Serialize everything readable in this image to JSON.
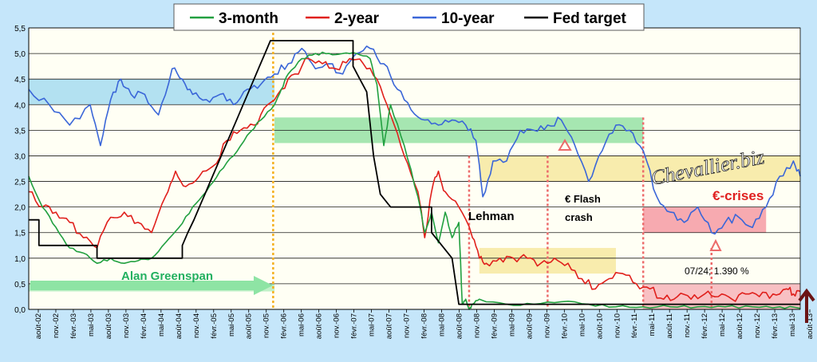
{
  "chart_data": {
    "type": "line",
    "title": "",
    "ylabel": "",
    "xlabel": "",
    "ylim": [
      0,
      5.5
    ],
    "y_ticks": [
      "0,0",
      "0,5",
      "1,0",
      "1,5",
      "2,0",
      "2,5",
      "3,0",
      "3,5",
      "4,0",
      "4,5",
      "5,0",
      "5,5"
    ],
    "x_ticks": [
      "août-02",
      "nov.-02",
      "févr.-03",
      "mai-03",
      "août-03",
      "nov.-03",
      "févr.-04",
      "mai-04",
      "août-04",
      "nov.-04",
      "févr.-05",
      "mai-05",
      "août-05",
      "nov.-05",
      "févr.-06",
      "mai-06",
      "août-06",
      "nov.-06",
      "févr.-07",
      "mai-07",
      "août-07",
      "nov.-07",
      "févr.-08",
      "mai-08",
      "août-08",
      "nov.-08",
      "févr.-09",
      "mai-09",
      "août-09",
      "nov.-09",
      "févr.-10",
      "mai-10",
      "août-10",
      "nov.-10",
      "févr.-11",
      "mai-11",
      "août-11",
      "nov.-11",
      "févr.-12",
      "mai-12",
      "août-12",
      "nov.-12",
      "févr.-13",
      "mai-13",
      "août-13"
    ],
    "legend": [
      {
        "name": "3-month",
        "color": "#22a040"
      },
      {
        "name": "2-year",
        "color": "#e0201c"
      },
      {
        "name": "10-year",
        "color": "#3a66d8"
      },
      {
        "name": "Fed target",
        "color": "#000000"
      }
    ],
    "series": [
      {
        "name": "10-year",
        "color": "#3a66d8",
        "points": [
          [
            0,
            4.3
          ],
          [
            3,
            4.0
          ],
          [
            6,
            3.6
          ],
          [
            9,
            4.0
          ],
          [
            10.5,
            3.2
          ],
          [
            12,
            4.1
          ],
          [
            13.5,
            4.5
          ],
          [
            15,
            4.2
          ],
          [
            17,
            4.2
          ],
          [
            19,
            3.8
          ],
          [
            21,
            4.7
          ],
          [
            22.5,
            4.5
          ],
          [
            24,
            4.2
          ],
          [
            26,
            4.1
          ],
          [
            28,
            4.2
          ],
          [
            30,
            4.0
          ],
          [
            32,
            4.3
          ],
          [
            34,
            4.4
          ],
          [
            36,
            4.6
          ],
          [
            38,
            4.8
          ],
          [
            40,
            5.1
          ],
          [
            42,
            4.7
          ],
          [
            44,
            4.8
          ],
          [
            46,
            4.6
          ],
          [
            48,
            5.0
          ],
          [
            50,
            5.1
          ],
          [
            52,
            4.8
          ],
          [
            54,
            4.3
          ],
          [
            56,
            3.9
          ],
          [
            58,
            3.7
          ],
          [
            60,
            3.6
          ],
          [
            62,
            3.7
          ],
          [
            64,
            3.6
          ],
          [
            65.5,
            3.3
          ],
          [
            66.5,
            2.2
          ],
          [
            68,
            2.9
          ],
          [
            70,
            2.9
          ],
          [
            72,
            3.5
          ],
          [
            74,
            3.5
          ],
          [
            76,
            3.6
          ],
          [
            78,
            3.7
          ],
          [
            80,
            3.2
          ],
          [
            82,
            2.5
          ],
          [
            84,
            3.1
          ],
          [
            86,
            3.6
          ],
          [
            88,
            3.5
          ],
          [
            90,
            3.1
          ],
          [
            92,
            2.2
          ],
          [
            94,
            1.9
          ],
          [
            96,
            1.7
          ],
          [
            98,
            2.0
          ],
          [
            100,
            1.5
          ],
          [
            102,
            1.7
          ],
          [
            104,
            1.8
          ],
          [
            106,
            1.6
          ],
          [
            108,
            2.0
          ],
          [
            110,
            2.6
          ],
          [
            112,
            2.9
          ],
          [
            113,
            2.6
          ]
        ]
      },
      {
        "name": "2-year",
        "color": "#e0201c",
        "points": [
          [
            0,
            2.3
          ],
          [
            2,
            2.0
          ],
          [
            4,
            1.9
          ],
          [
            6,
            1.7
          ],
          [
            8,
            1.4
          ],
          [
            10,
            1.2
          ],
          [
            12,
            1.8
          ],
          [
            14,
            1.9
          ],
          [
            16,
            1.7
          ],
          [
            18,
            1.5
          ],
          [
            20,
            2.2
          ],
          [
            21.5,
            2.7
          ],
          [
            23,
            2.4
          ],
          [
            25,
            2.6
          ],
          [
            27,
            2.8
          ],
          [
            29,
            3.3
          ],
          [
            31,
            3.5
          ],
          [
            33,
            3.6
          ],
          [
            35,
            4.0
          ],
          [
            37,
            4.3
          ],
          [
            39,
            4.6
          ],
          [
            41,
            4.9
          ],
          [
            43,
            4.8
          ],
          [
            45,
            4.7
          ],
          [
            47,
            4.9
          ],
          [
            49,
            4.8
          ],
          [
            51,
            4.5
          ],
          [
            53,
            3.8
          ],
          [
            55,
            3.0
          ],
          [
            57,
            2.3
          ],
          [
            58,
            1.4
          ],
          [
            59,
            2.3
          ],
          [
            60,
            2.7
          ],
          [
            61,
            2.3
          ],
          [
            63,
            2.0
          ],
          [
            65,
            1.4
          ],
          [
            66,
            1.0
          ],
          [
            67,
            0.9
          ],
          [
            69,
            1.0
          ],
          [
            71,
            1.0
          ],
          [
            73,
            1.0
          ],
          [
            75,
            0.9
          ],
          [
            77,
            1.0
          ],
          [
            79,
            0.9
          ],
          [
            81,
            0.6
          ],
          [
            83,
            0.4
          ],
          [
            85,
            0.6
          ],
          [
            87,
            0.7
          ],
          [
            89,
            0.5
          ],
          [
            91,
            0.4
          ],
          [
            93,
            0.2
          ],
          [
            95,
            0.25
          ],
          [
            97,
            0.2
          ],
          [
            99,
            0.3
          ],
          [
            101,
            0.25
          ],
          [
            103,
            0.2
          ],
          [
            105,
            0.3
          ],
          [
            107,
            0.25
          ],
          [
            109,
            0.3
          ],
          [
            111,
            0.4
          ],
          [
            112,
            0.3
          ],
          [
            113,
            0.35
          ]
        ]
      },
      {
        "name": "3-month",
        "color": "#22a040",
        "points": [
          [
            0,
            2.6
          ],
          [
            2,
            2.0
          ],
          [
            4,
            1.6
          ],
          [
            6,
            1.2
          ],
          [
            8,
            1.1
          ],
          [
            10,
            0.9
          ],
          [
            12,
            1.0
          ],
          [
            14,
            0.9
          ],
          [
            16,
            0.95
          ],
          [
            18,
            1.0
          ],
          [
            20,
            1.3
          ],
          [
            22,
            1.6
          ],
          [
            24,
            2.0
          ],
          [
            26,
            2.3
          ],
          [
            28,
            2.7
          ],
          [
            30,
            3.0
          ],
          [
            32,
            3.4
          ],
          [
            34,
            3.7
          ],
          [
            36,
            4.0
          ],
          [
            37,
            4.3
          ],
          [
            38,
            4.6
          ],
          [
            40,
            4.9
          ],
          [
            42,
            5.0
          ],
          [
            44,
            5.0
          ],
          [
            46,
            5.0
          ],
          [
            48,
            5.0
          ],
          [
            50,
            4.9
          ],
          [
            51,
            4.4
          ],
          [
            52,
            3.2
          ],
          [
            53,
            4.0
          ],
          [
            55,
            3.2
          ],
          [
            57,
            2.2
          ],
          [
            58,
            1.5
          ],
          [
            59,
            1.9
          ],
          [
            60,
            1.3
          ],
          [
            61,
            1.9
          ],
          [
            62,
            1.4
          ],
          [
            63,
            1.7
          ],
          [
            63.5,
            0.1
          ],
          [
            64,
            0.2
          ],
          [
            64.5,
            0.0
          ],
          [
            65,
            0.1
          ],
          [
            66,
            0.2
          ],
          [
            70,
            0.1
          ],
          [
            74,
            0.1
          ],
          [
            78,
            0.15
          ],
          [
            82,
            0.1
          ],
          [
            86,
            0.05
          ],
          [
            90,
            0.05
          ],
          [
            94,
            0.05
          ],
          [
            98,
            0.05
          ],
          [
            102,
            0.05
          ],
          [
            106,
            0.05
          ],
          [
            110,
            0.05
          ],
          [
            113,
            0.02
          ]
        ]
      },
      {
        "name": "Fed target",
        "color": "#000000",
        "points": [
          [
            0,
            1.75
          ],
          [
            1.5,
            1.75
          ],
          [
            1.5,
            1.25
          ],
          [
            10,
            1.25
          ],
          [
            10,
            1.0
          ],
          [
            22.5,
            1.0
          ],
          [
            22.5,
            1.25
          ],
          [
            23.3,
            1.5
          ],
          [
            24.2,
            1.75
          ],
          [
            25,
            2.0
          ],
          [
            25.8,
            2.25
          ],
          [
            26.6,
            2.5
          ],
          [
            27.4,
            2.75
          ],
          [
            28.2,
            3.0
          ],
          [
            29,
            3.25
          ],
          [
            29.8,
            3.5
          ],
          [
            30.6,
            3.75
          ],
          [
            31.4,
            4.0
          ],
          [
            32.2,
            4.25
          ],
          [
            33,
            4.5
          ],
          [
            33.8,
            4.75
          ],
          [
            34.6,
            5.0
          ],
          [
            35.4,
            5.25
          ],
          [
            47.5,
            5.25
          ],
          [
            47.5,
            4.75
          ],
          [
            48.5,
            4.5
          ],
          [
            49.5,
            4.25
          ],
          [
            50.5,
            3.0
          ],
          [
            51.5,
            2.25
          ],
          [
            53,
            2.0
          ],
          [
            59,
            2.0
          ],
          [
            59,
            1.5
          ],
          [
            62,
            1.0
          ],
          [
            63,
            0.1
          ],
          [
            113,
            0.1
          ]
        ]
      }
    ],
    "bands": [
      {
        "name": "10y-range-early",
        "color": "#74c8ee",
        "x0": 0,
        "x1": 36,
        "y0": 4.0,
        "y1": 4.5
      },
      {
        "name": "10y-range-2008-2011",
        "color": "#5cd27a",
        "x0": 36,
        "x1": 90,
        "y0": 3.25,
        "y1": 3.75
      },
      {
        "name": "10y-range-lehman",
        "color": "#f2dc72",
        "x0": 66,
        "x1": 113,
        "y0": 2.5,
        "y1": 3.0
      },
      {
        "name": "2y-range-lehman",
        "color": "#f2dc72",
        "x0": 66,
        "x1": 86,
        "y0": 0.7,
        "y1": 1.2
      },
      {
        "name": "euro-crises-10y",
        "color": "#f06478",
        "x0": 90,
        "x1": 108,
        "y0": 1.5,
        "y1": 2.0
      },
      {
        "name": "euro-crises-2y",
        "color": "#f28c9a",
        "x0": 90,
        "x1": 113,
        "y0": 0.0,
        "y1": 0.5
      },
      {
        "name": "greenspan-band",
        "color": "#8ee4a4",
        "x0": 0,
        "x1": 36,
        "y0": 0.35,
        "y1": 0.5
      }
    ],
    "vlines": [
      {
        "name": "greenspan-end",
        "x": 35.8,
        "color": "#f4b020"
      },
      {
        "name": "lehman",
        "x": 64.5,
        "color": "#ec6a6a"
      },
      {
        "name": "flash-crash",
        "x": 76,
        "color": "#ec6a6a"
      },
      {
        "name": "euro-crisis-start",
        "x": 90,
        "color": "#ec6a6a"
      },
      {
        "name": "low-2012",
        "x": 100,
        "color": "#ec6a6a"
      }
    ],
    "annotations": [
      {
        "name": "greenspan",
        "text": "Alan Greenspan",
        "color": "#22b060"
      },
      {
        "name": "lehman",
        "text": "Lehman",
        "color": "#000000"
      },
      {
        "name": "flash-crash-1",
        "text": "€ Flash",
        "color": "#000000"
      },
      {
        "name": "flash-crash-2",
        "text": "crash",
        "color": "#000000"
      },
      {
        "name": "euro-crises",
        "text": "€-crises",
        "color": "#e02020"
      },
      {
        "name": "low-point",
        "text": "07/24;  1.390 %",
        "color": "#000000"
      },
      {
        "name": "watermark",
        "text": "Chevallier.biz",
        "color": "#ffffff"
      }
    ]
  }
}
